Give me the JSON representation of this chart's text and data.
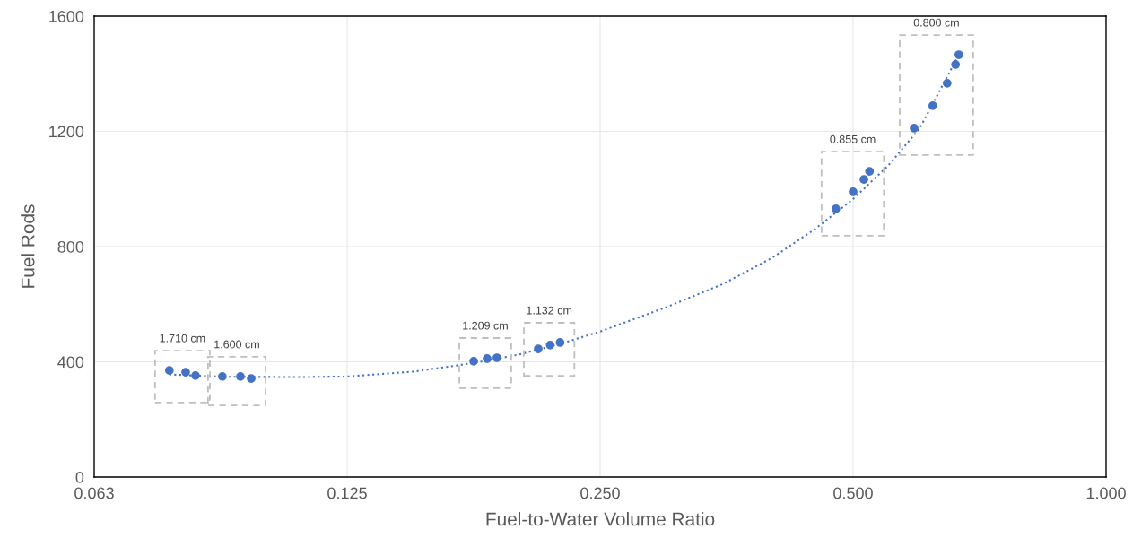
{
  "chart_data": {
    "type": "scatter",
    "xlabel": "Fuel-to-Water Volume Ratio",
    "ylabel": "Fuel Rods",
    "log": "x",
    "grid": true,
    "marker": "circle",
    "xlim": [
      0.0625,
      1.0
    ],
    "xticks": [
      {
        "value": 0.0625,
        "label": "0.063"
      },
      {
        "value": 0.125,
        "label": "0.125"
      },
      {
        "value": 0.25,
        "label": "0.250"
      },
      {
        "value": 0.5,
        "label": "0.500"
      },
      {
        "value": 1.0,
        "label": "1.000"
      }
    ],
    "ylim": [
      0,
      1600
    ],
    "yticks": [
      0,
      400,
      800,
      1200,
      1600
    ],
    "series": [
      {
        "color": "#4472c4",
        "x": [
          0.0768,
          0.0803,
          0.0825,
          0.0888,
          0.0933,
          0.0961,
          0.1768,
          0.1834,
          0.1884,
          0.211,
          0.218,
          0.224,
          0.477,
          0.5,
          0.515,
          0.523,
          0.591,
          0.622,
          0.647,
          0.662,
          0.668
        ],
        "values": [
          370,
          364,
          352,
          349,
          349,
          342,
          402,
          411,
          414,
          445,
          458,
          467,
          931,
          990,
          1033,
          1061,
          1211,
          1289,
          1367,
          1432,
          1466
        ]
      },
      {
        "type": "line",
        "line_style": "dotted",
        "marker": "none",
        "color": "#4472c4",
        "x": [
          0.0768,
          0.09,
          0.11,
          0.125,
          0.15,
          0.177,
          0.2,
          0.224,
          0.25,
          0.3,
          0.35,
          0.4,
          0.45,
          0.5,
          0.55,
          0.6,
          0.668
        ],
        "values": [
          356,
          348,
          347,
          349,
          366,
          396,
          425,
          462,
          505,
          590,
          670,
          760,
          860,
          965,
          1080,
          1210,
          1466
        ]
      }
    ],
    "annotations": [
      "1.710 cm",
      "1.600 cm",
      "1.209 cm",
      "1.132 cm",
      "0.855 cm",
      "0.800 cm"
    ]
  }
}
